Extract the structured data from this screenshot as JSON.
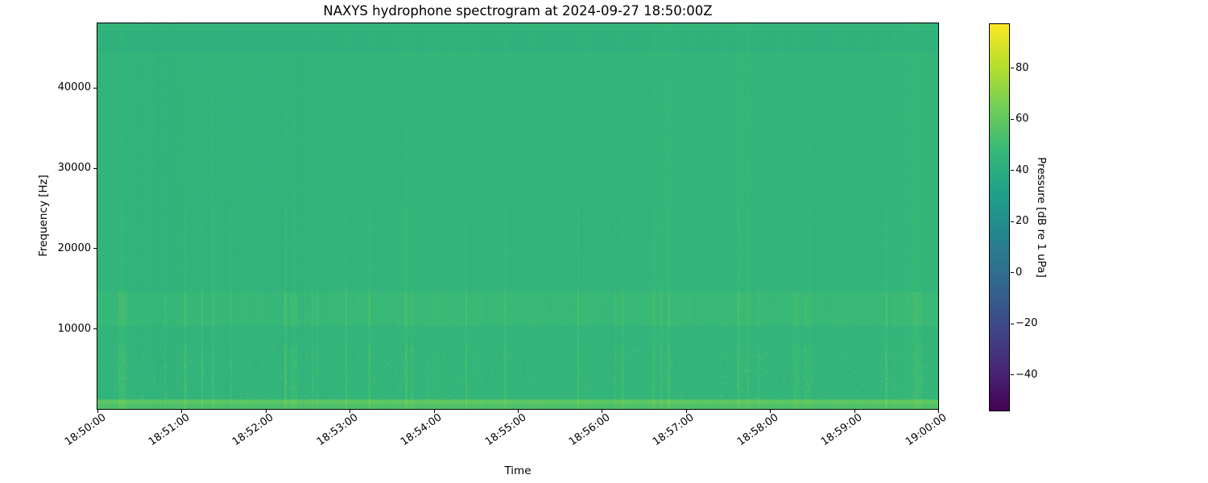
{
  "chart_data": {
    "type": "heatmap",
    "title": "NAXYS hydrophone spectrogram at 2024-09-27 18:50:00Z",
    "xlabel": "Time",
    "ylabel": "Frequency [Hz]",
    "x_tick_labels": [
      "18:50:00",
      "18:51:00",
      "18:52:00",
      "18:53:00",
      "18:54:00",
      "18:55:00",
      "18:56:00",
      "18:57:00",
      "18:58:00",
      "18:59:00",
      "19:00:00"
    ],
    "y_tick_values": [
      10000,
      20000,
      30000,
      40000
    ],
    "y_tick_labels": [
      "10000",
      "20000",
      "30000",
      "40000"
    ],
    "freq_range_hz": [
      0,
      48000
    ],
    "time_range": [
      "18:50:00",
      "19:00:00"
    ],
    "grid": false,
    "colorbar": {
      "label": "Pressure [dB re 1 uPa]",
      "tick_values": [
        80,
        60,
        40,
        20,
        0,
        -20,
        -40
      ],
      "tick_labels": [
        "80",
        "60",
        "40",
        "20",
        "0",
        "−20",
        "−40"
      ],
      "vmin": -54,
      "vmax": 97,
      "colormap": "viridis"
    },
    "spectral_profile": {
      "background_db": 45,
      "bands": [
        {
          "name": "low-frequency-noise-band",
          "f_lo_hz": 0,
          "f_hi_hz": 1200,
          "db_boost": 9
        },
        {
          "name": "low-frequency-bright-line",
          "f_lo_hz": 650,
          "f_hi_hz": 1150,
          "db_boost": 4
        },
        {
          "name": "mid-frequency-elevated-band",
          "f_lo_hz": 10300,
          "f_hi_hz": 14500,
          "db_boost": 2.5
        },
        {
          "name": "high-frequency-quiet-band",
          "f_lo_hz": 44500,
          "f_hi_hz": 47200,
          "db_boost": -2.2
        }
      ],
      "vertical_striation_db": 1.3,
      "transient_event_probability": 0.05,
      "transient_event_db": 6,
      "speckle_zone_hz": [
        1200,
        7500
      ],
      "speckle_max_db": 22,
      "noise_seed": 11
    },
    "viridis_stops": [
      "#440154",
      "#482878",
      "#3e4989",
      "#31688e",
      "#26828e",
      "#1f9e89",
      "#35b779",
      "#6dcd59",
      "#b4de2c",
      "#fde725"
    ]
  },
  "colors": {
    "background": "#ffffff",
    "text": "#000000",
    "axis": "#000000"
  }
}
